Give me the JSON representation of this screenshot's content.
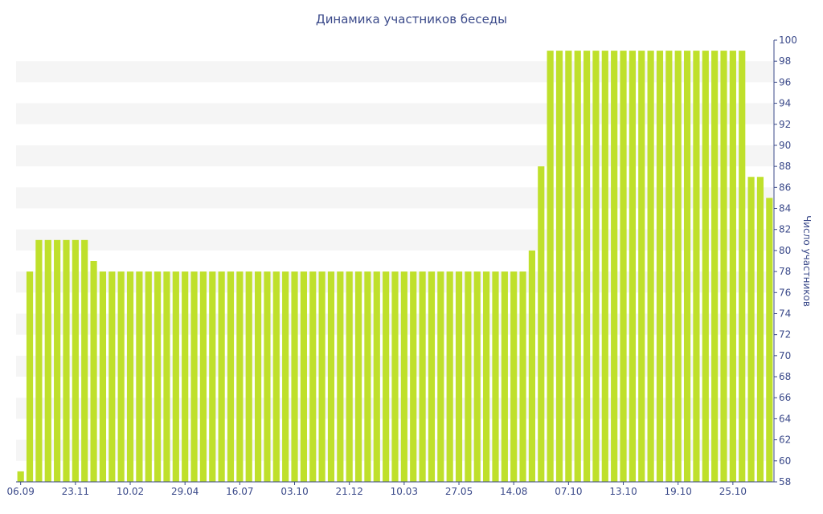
{
  "chart_data": {
    "type": "bar",
    "title": "Динамика участников беседы",
    "ylabel": "Число участников",
    "xlabel": "",
    "ylim": [
      58,
      100
    ],
    "yticks": [
      58,
      60,
      62,
      64,
      66,
      68,
      70,
      72,
      74,
      76,
      78,
      80,
      82,
      84,
      86,
      88,
      90,
      92,
      94,
      96,
      98,
      100
    ],
    "x_tick_labels": [
      "06.09",
      "23.11",
      "10.02",
      "29.04",
      "16.07",
      "03.10",
      "21.12",
      "10.03",
      "27.05",
      "14.08",
      "07.10",
      "13.10",
      "19.10",
      "25.10"
    ],
    "x_tick_bar_index": [
      0,
      6,
      12,
      18,
      24,
      30,
      36,
      42,
      48,
      54,
      60,
      66,
      72,
      78
    ],
    "values": [
      59,
      78,
      81,
      81,
      81,
      81,
      81,
      81,
      79,
      78,
      78,
      78,
      78,
      78,
      78,
      78,
      78,
      78,
      78,
      78,
      78,
      78,
      78,
      78,
      78,
      78,
      78,
      78,
      78,
      78,
      78,
      78,
      78,
      78,
      78,
      78,
      78,
      78,
      78,
      78,
      78,
      78,
      78,
      78,
      78,
      78,
      78,
      78,
      78,
      78,
      78,
      78,
      78,
      78,
      78,
      78,
      80,
      88,
      99,
      99,
      99,
      99,
      99,
      99,
      99,
      99,
      99,
      99,
      99,
      99,
      99,
      99,
      99,
      99,
      99,
      99,
      99,
      99,
      99,
      99,
      87,
      87,
      85
    ],
    "grid": true,
    "colors": {
      "bar": "#bfe02b",
      "text": "#3b4a8a",
      "band": "#f5f5f5"
    }
  }
}
